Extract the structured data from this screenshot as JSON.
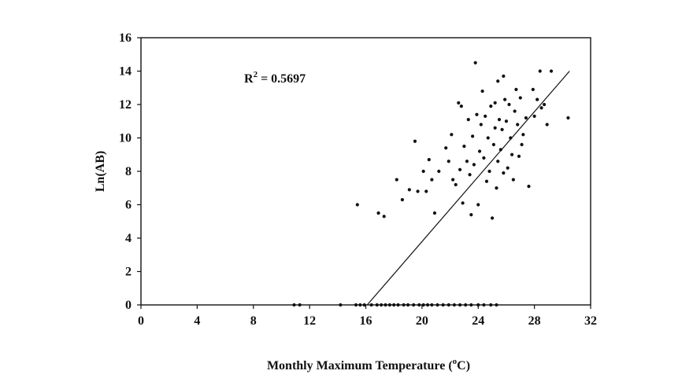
{
  "chart_data": {
    "type": "scatter",
    "title": "",
    "xlabel_main": "Monthly Maximum Temperature (",
    "xlabel_sup": "o",
    "xlabel_end": "C)",
    "ylabel": "Ln(AB)",
    "xlim": [
      0,
      32
    ],
    "ylim": [
      0,
      16
    ],
    "xticks": [
      "0",
      "4",
      "8",
      "12",
      "16",
      "20",
      "24",
      "28",
      "32"
    ],
    "yticks": [
      "0",
      "2",
      "4",
      "6",
      "8",
      "10",
      "12",
      "14",
      "16"
    ],
    "grid": false,
    "legend": "none",
    "annotation": {
      "base": "R",
      "sup": "2",
      "rest": " = 0.5697"
    },
    "trendline": {
      "x": [
        16.1,
        30.5
      ],
      "y": [
        0,
        14.0
      ]
    },
    "points": [
      [
        10.9,
        0
      ],
      [
        11.3,
        0
      ],
      [
        14.2,
        0
      ],
      [
        15.3,
        0
      ],
      [
        15.6,
        0
      ],
      [
        15.9,
        0
      ],
      [
        16.4,
        0
      ],
      [
        16.8,
        0
      ],
      [
        17.1,
        0
      ],
      [
        17.4,
        0
      ],
      [
        17.7,
        0
      ],
      [
        18.0,
        0
      ],
      [
        18.3,
        0
      ],
      [
        18.7,
        0
      ],
      [
        19.0,
        0
      ],
      [
        19.4,
        0
      ],
      [
        19.8,
        0
      ],
      [
        20.1,
        0
      ],
      [
        20.4,
        0
      ],
      [
        20.7,
        0
      ],
      [
        21.1,
        0
      ],
      [
        21.5,
        0
      ],
      [
        21.9,
        0
      ],
      [
        22.3,
        0
      ],
      [
        22.7,
        0
      ],
      [
        23.1,
        0
      ],
      [
        23.5,
        0
      ],
      [
        24.0,
        0
      ],
      [
        24.4,
        0
      ],
      [
        24.9,
        0
      ],
      [
        25.3,
        0
      ],
      [
        15.4,
        6.0
      ],
      [
        16.9,
        5.5
      ],
      [
        17.3,
        5.3
      ],
      [
        18.2,
        7.5
      ],
      [
        18.6,
        6.3
      ],
      [
        19.1,
        6.9
      ],
      [
        19.5,
        9.8
      ],
      [
        19.7,
        6.8
      ],
      [
        20.1,
        8.0
      ],
      [
        20.3,
        6.8
      ],
      [
        20.5,
        8.7
      ],
      [
        20.7,
        7.5
      ],
      [
        20.9,
        5.5
      ],
      [
        21.2,
        8.0
      ],
      [
        21.7,
        9.4
      ],
      [
        21.9,
        8.6
      ],
      [
        22.1,
        10.2
      ],
      [
        22.2,
        7.5
      ],
      [
        22.4,
        7.2
      ],
      [
        22.6,
        12.1
      ],
      [
        22.7,
        8.1
      ],
      [
        22.8,
        11.9
      ],
      [
        22.9,
        6.1
      ],
      [
        23.0,
        9.5
      ],
      [
        23.2,
        8.6
      ],
      [
        23.3,
        11.1
      ],
      [
        23.4,
        7.8
      ],
      [
        23.5,
        5.4
      ],
      [
        23.6,
        10.1
      ],
      [
        23.7,
        8.4
      ],
      [
        23.8,
        14.5
      ],
      [
        23.9,
        11.4
      ],
      [
        24.0,
        6.0
      ],
      [
        24.1,
        9.2
      ],
      [
        24.2,
        10.8
      ],
      [
        24.3,
        12.8
      ],
      [
        24.4,
        8.8
      ],
      [
        24.5,
        11.3
      ],
      [
        24.6,
        7.4
      ],
      [
        24.7,
        10.0
      ],
      [
        24.8,
        8.0
      ],
      [
        24.9,
        11.9
      ],
      [
        25.0,
        5.2
      ],
      [
        25.1,
        9.6
      ],
      [
        25.2,
        12.1
      ],
      [
        25.2,
        10.6
      ],
      [
        25.3,
        7.0
      ],
      [
        25.4,
        13.4
      ],
      [
        25.4,
        8.6
      ],
      [
        25.5,
        11.1
      ],
      [
        25.6,
        9.3
      ],
      [
        25.7,
        10.5
      ],
      [
        25.8,
        13.7
      ],
      [
        25.8,
        7.9
      ],
      [
        25.9,
        12.3
      ],
      [
        26.0,
        11.0
      ],
      [
        26.1,
        8.2
      ],
      [
        26.2,
        12.0
      ],
      [
        26.3,
        10.0
      ],
      [
        26.4,
        9.0
      ],
      [
        26.5,
        7.5
      ],
      [
        26.6,
        11.6
      ],
      [
        26.7,
        12.9
      ],
      [
        26.8,
        10.8
      ],
      [
        26.9,
        8.9
      ],
      [
        27.0,
        12.4
      ],
      [
        27.1,
        9.6
      ],
      [
        27.2,
        10.2
      ],
      [
        27.4,
        11.2
      ],
      [
        27.6,
        7.1
      ],
      [
        27.9,
        12.9
      ],
      [
        28.0,
        11.3
      ],
      [
        28.2,
        12.3
      ],
      [
        28.4,
        14.0
      ],
      [
        28.5,
        11.8
      ],
      [
        28.7,
        12.0
      ],
      [
        28.9,
        10.8
      ],
      [
        29.2,
        14.0
      ],
      [
        30.4,
        11.2
      ]
    ]
  }
}
